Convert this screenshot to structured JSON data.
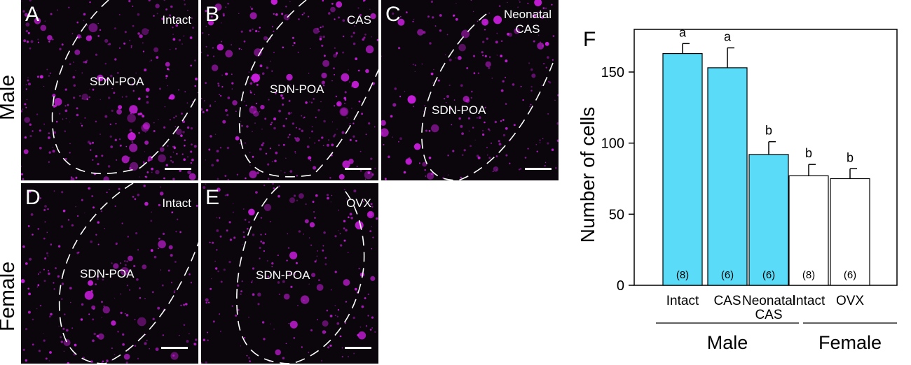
{
  "rows": [
    {
      "label": "Male"
    },
    {
      "label": "Female"
    }
  ],
  "region_label": "SDN-POA",
  "panels": [
    {
      "letter": "A",
      "condition": [
        "Intact"
      ]
    },
    {
      "letter": "B",
      "condition": [
        "CAS"
      ]
    },
    {
      "letter": "C",
      "condition": [
        "Neonatal",
        "CAS"
      ]
    },
    {
      "letter": "D",
      "condition": [
        "Intact"
      ]
    },
    {
      "letter": "E",
      "condition": [
        "OVX"
      ]
    }
  ],
  "colors": {
    "background": "#0a060c",
    "signal": "#d21ee6",
    "bar_male": "#5adcf8",
    "bar_female": "#ffffff"
  },
  "chart_data": {
    "type": "bar",
    "panel_letter": "F",
    "ylabel": "Number of cells",
    "ylim": [
      0,
      180
    ],
    "yticks": [
      0,
      50,
      100,
      150
    ],
    "categories": [
      {
        "lines": [
          "Intact"
        ],
        "group": "Male"
      },
      {
        "lines": [
          "CAS"
        ],
        "group": "Male"
      },
      {
        "lines": [
          "Neonatal",
          "CAS"
        ],
        "group": "Male"
      },
      {
        "lines": [
          "Intact"
        ],
        "group": "Female"
      },
      {
        "lines": [
          "OVX"
        ],
        "group": "Female"
      }
    ],
    "values": [
      163,
      153,
      92,
      77,
      75
    ],
    "errors": [
      7,
      14,
      9,
      8,
      7
    ],
    "letters": [
      "a",
      "a",
      "b",
      "b",
      "b"
    ],
    "n_labels": [
      "(8)",
      "(6)",
      "(6)",
      "(8)",
      "(6)"
    ],
    "groups": [
      "Male",
      "Female"
    ]
  }
}
